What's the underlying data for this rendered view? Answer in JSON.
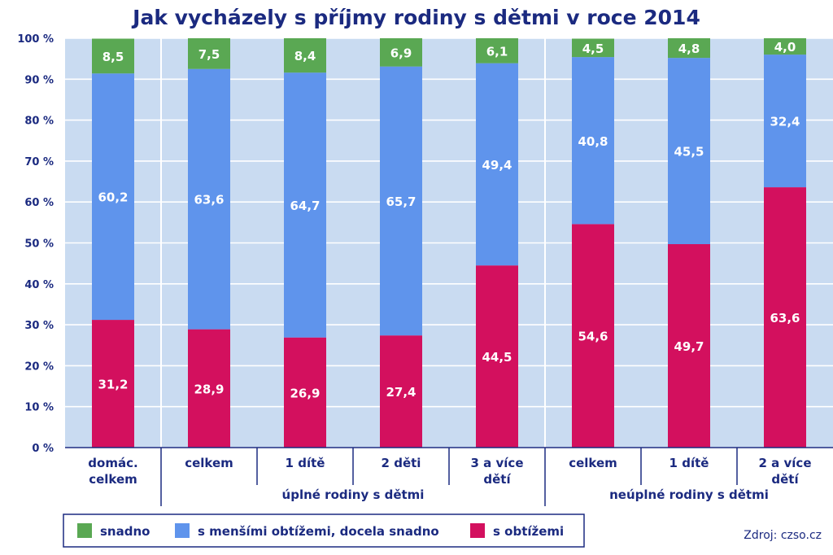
{
  "chart_data": {
    "type": "bar",
    "stacked": true,
    "title": "Jak vycházely s příjmy rodiny s dětmi v roce 2014",
    "ylim": [
      0,
      100
    ],
    "yticks": [
      "0 %",
      "10 %",
      "20 %",
      "30 %",
      "40 %",
      "50 %",
      "60 %",
      "70 %",
      "80 %",
      "90 %",
      "100 %"
    ],
    "categories": [
      [
        "domác.",
        "celkem"
      ],
      [
        "celkem"
      ],
      [
        "1 dítě"
      ],
      [
        "2 děti"
      ],
      [
        "3 a více",
        "dětí"
      ],
      [
        "celkem"
      ],
      [
        "1 dítě"
      ],
      [
        "2 a více",
        "dětí"
      ]
    ],
    "groups": [
      {
        "label": "úplné rodiny s dětmi",
        "start": 1,
        "end": 4
      },
      {
        "label": "neúplné rodiny s dětmi",
        "start": 5,
        "end": 7
      }
    ],
    "series": [
      {
        "name": "s obtížemi",
        "color": "#d3105e",
        "values": [
          31.2,
          28.9,
          26.9,
          27.4,
          44.5,
          54.6,
          49.7,
          63.6
        ],
        "labels": [
          "31,2",
          "28,9",
          "26,9",
          "27,4",
          "44,5",
          "54,6",
          "49,7",
          "63,6"
        ]
      },
      {
        "name": "s menšími obtížemi, docela snadno",
        "color": "#5f94ec",
        "values": [
          60.2,
          63.6,
          64.7,
          65.7,
          49.4,
          40.8,
          45.5,
          32.4
        ],
        "labels": [
          "60,2",
          "63,6",
          "64,7",
          "65,7",
          "49,4",
          "40,8",
          "45,5",
          "32,4"
        ]
      },
      {
        "name": "snadno",
        "color": "#5aa853",
        "values": [
          8.5,
          7.5,
          8.4,
          6.9,
          6.1,
          4.5,
          4.8,
          4.0
        ],
        "labels": [
          "8,5",
          "7,5",
          "8,4",
          "6,9",
          "6,1",
          "4,5",
          "4,8",
          "4,0"
        ]
      }
    ],
    "legend": [
      "snadno",
      "s menšími obtížemi, docela snadno",
      "s obtížemi"
    ],
    "legend_position": "bottom-left",
    "grid": true,
    "plot_background": "#c9dbf1",
    "source": "Zdroj: czso.cz"
  }
}
